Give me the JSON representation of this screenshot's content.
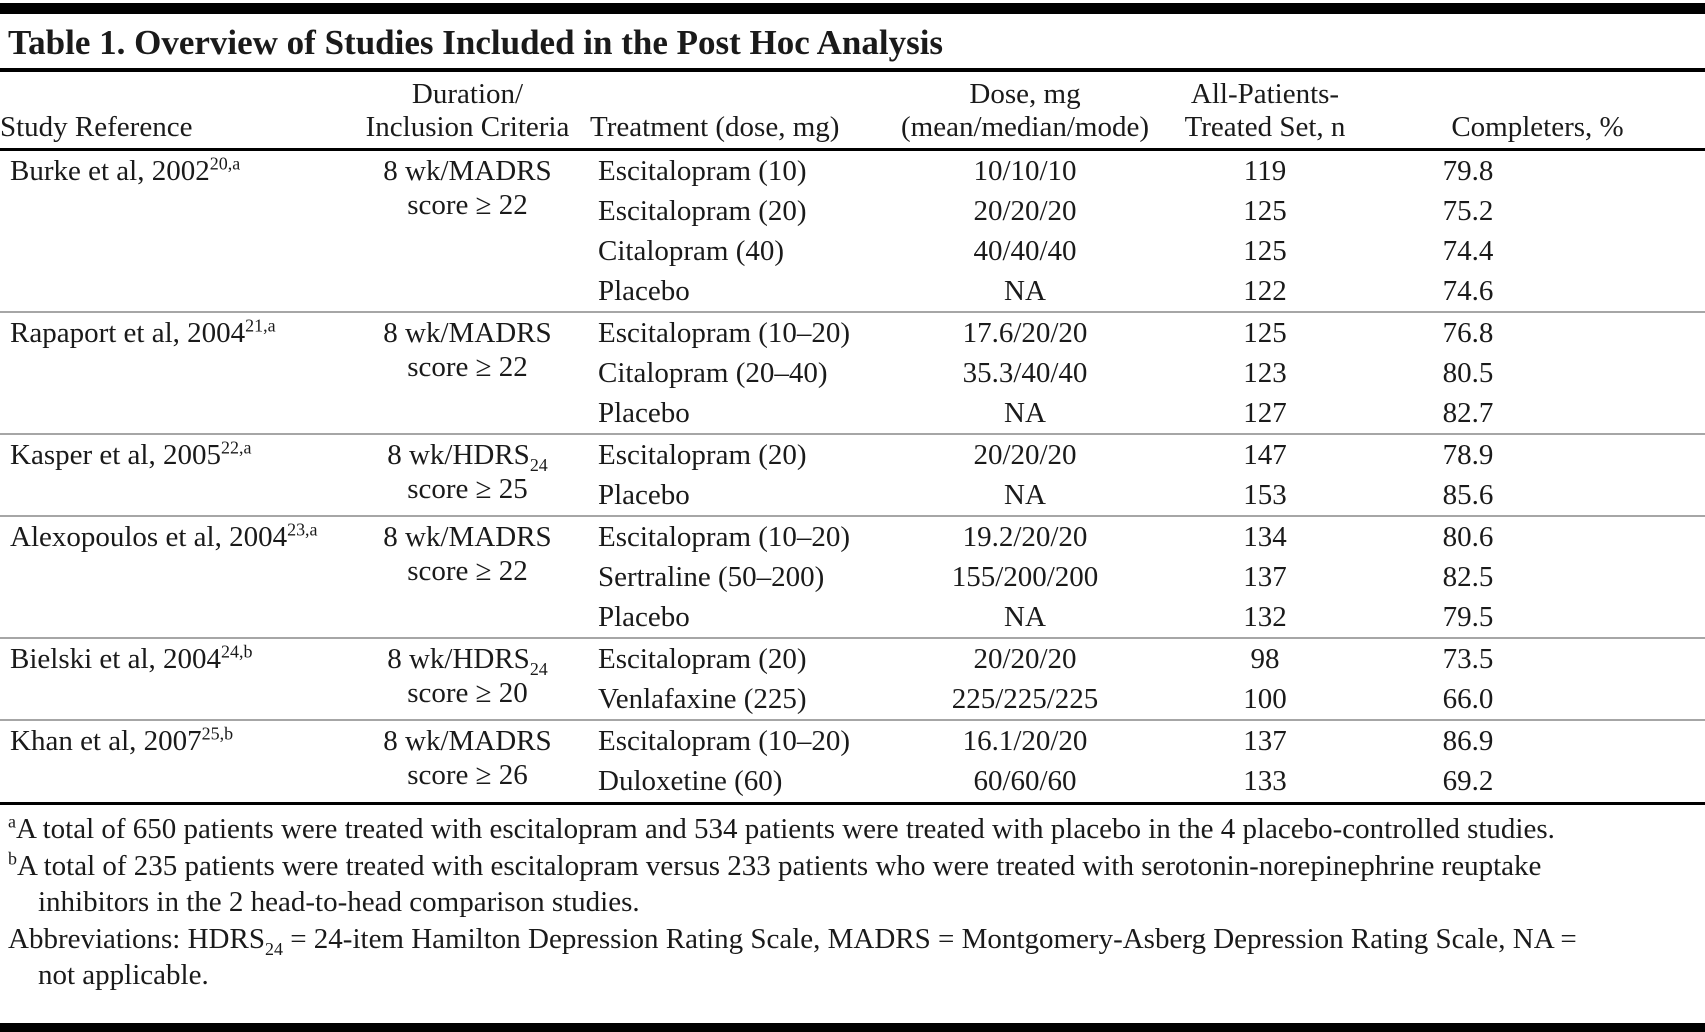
{
  "title": "Table 1. Overview of Studies Included in the Post Hoc Analysis",
  "colors": {
    "rule_black": "#000000",
    "rule_gray": "#a6a6a6",
    "text": "#1a1a1a",
    "background": "#ffffff"
  },
  "columns": {
    "study": "Study Reference",
    "duration_line1": "Duration/",
    "duration_line2": "Inclusion Criteria",
    "treatment": "Treatment (dose, mg)",
    "dose_line1": "Dose, mg",
    "dose_line2": "(mean/median/mode)",
    "apts_line1": "All-Patients-",
    "apts_line2": "Treated Set, n",
    "completers": "Completers, %"
  },
  "studies": [
    {
      "ref": "Burke et al, 2002",
      "sup": "20,a",
      "crit1": "8 wk/MADRS",
      "crit1_sub": "",
      "crit2": "score ≥ 22",
      "rows": [
        {
          "treatment": "Escitalopram (10)",
          "dose": "10/10/10",
          "n": "119",
          "completers": "79.8"
        },
        {
          "treatment": "Escitalopram (20)",
          "dose": "20/20/20",
          "n": "125",
          "completers": "75.2"
        },
        {
          "treatment": "Citalopram (40)",
          "dose": "40/40/40",
          "n": "125",
          "completers": "74.4"
        },
        {
          "treatment": "Placebo",
          "dose": "NA",
          "n": "122",
          "completers": "74.6"
        }
      ]
    },
    {
      "ref": "Rapaport et al, 2004",
      "sup": "21,a",
      "crit1": "8 wk/MADRS",
      "crit1_sub": "",
      "crit2": "score ≥ 22",
      "rows": [
        {
          "treatment": "Escitalopram (10–20)",
          "dose": "17.6/20/20",
          "n": "125",
          "completers": "76.8"
        },
        {
          "treatment": "Citalopram (20–40)",
          "dose": "35.3/40/40",
          "n": "123",
          "completers": "80.5"
        },
        {
          "treatment": "Placebo",
          "dose": "NA",
          "n": "127",
          "completers": "82.7"
        }
      ]
    },
    {
      "ref": "Kasper et al, 2005",
      "sup": "22,a",
      "crit1": "8 wk/HDRS",
      "crit1_sub": "24",
      "crit2": "score ≥ 25",
      "rows": [
        {
          "treatment": "Escitalopram (20)",
          "dose": "20/20/20",
          "n": "147",
          "completers": "78.9"
        },
        {
          "treatment": "Placebo",
          "dose": "NA",
          "n": "153",
          "completers": "85.6"
        }
      ]
    },
    {
      "ref": "Alexopoulos et al, 2004",
      "sup": "23,a",
      "crit1": "8 wk/MADRS",
      "crit1_sub": "",
      "crit2": "score ≥ 22",
      "rows": [
        {
          "treatment": "Escitalopram (10–20)",
          "dose": "19.2/20/20",
          "n": "134",
          "completers": "80.6"
        },
        {
          "treatment": "Sertraline (50–200)",
          "dose": "155/200/200",
          "n": "137",
          "completers": "82.5"
        },
        {
          "treatment": "Placebo",
          "dose": "NA",
          "n": "132",
          "completers": "79.5"
        }
      ]
    },
    {
      "ref": "Bielski et al, 2004",
      "sup": "24,b",
      "crit1": "8 wk/HDRS",
      "crit1_sub": "24",
      "crit2": "score ≥ 20",
      "rows": [
        {
          "treatment": "Escitalopram (20)",
          "dose": "20/20/20",
          "n": "98",
          "completers": "73.5"
        },
        {
          "treatment": "Venlafaxine (225)",
          "dose": "225/225/225",
          "n": "100",
          "completers": "66.0"
        }
      ]
    },
    {
      "ref": "Khan et al, 2007",
      "sup": "25,b",
      "crit1": "8 wk/MADRS",
      "crit1_sub": "",
      "crit2": "score ≥ 26",
      "rows": [
        {
          "treatment": "Escitalopram (10–20)",
          "dose": "16.1/20/20",
          "n": "137",
          "completers": "86.9"
        },
        {
          "treatment": "Duloxetine (60)",
          "dose": "60/60/60",
          "n": "133",
          "completers": "69.2"
        }
      ]
    }
  ],
  "footnotes": {
    "a_marker": "a",
    "a_text": "A total of 650 patients were treated with escitalopram and 534 patients were treated with placebo in the 4 placebo-controlled studies.",
    "b_marker": "b",
    "b_text": "A total of 235 patients were treated with escitalopram versus 233 patients who were treated with serotonin-norepinephrine reuptake inhibitors in the 2 head-to-head comparison studies.",
    "abbrev_pre": "Abbreviations: HDRS",
    "abbrev_sub": "24",
    "abbrev_post": " = 24-item Hamilton Depression Rating Scale, MADRS = Montgomery-Asberg Depression Rating Scale, NA = not applicable."
  }
}
